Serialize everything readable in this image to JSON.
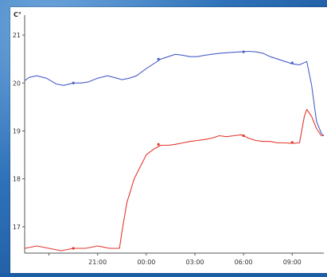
{
  "chart_data": {
    "type": "line",
    "title": "",
    "xlabel": "",
    "ylabel": "",
    "unit_label": "C°",
    "y_ticks": [
      17,
      18,
      19,
      20,
      21
    ],
    "y_tick_labels": [
      "17",
      "18",
      "19",
      "20",
      "21"
    ],
    "ylim": [
      16.45,
      21.35
    ],
    "x_ticks": [
      1,
      3,
      5,
      7,
      9,
      11
    ],
    "x_tick_labels": [
      "21:00",
      "00:00",
      "03:00",
      "06:00",
      "09:00"
    ],
    "x_tick_label_positions": [
      3,
      5,
      7,
      9,
      11
    ],
    "xlim": [
      0,
      12.3
    ],
    "grid": false,
    "legend": "none",
    "series": [
      {
        "color": "#4a5fc8",
        "x": [
          0,
          0.2,
          0.5,
          0.9,
          1.3,
          1.6,
          2.0,
          2.3,
          2.6,
          3.0,
          3.4,
          3.8,
          4.0,
          4.3,
          4.6,
          5.0,
          5.3,
          5.6,
          5.9,
          6.2,
          6.5,
          6.8,
          7.1,
          7.4,
          7.7,
          8.0,
          8.3,
          8.6,
          8.9,
          9.2,
          9.5,
          9.8,
          10.1,
          10.4,
          10.7,
          11.0,
          11.3,
          11.6,
          11.8,
          12.0,
          12.2,
          12.3
        ],
        "y": [
          20.05,
          20.12,
          20.15,
          20.1,
          19.98,
          19.95,
          20.0,
          20.0,
          20.02,
          20.1,
          20.15,
          20.1,
          20.07,
          20.1,
          20.15,
          20.3,
          20.4,
          20.5,
          20.55,
          20.6,
          20.58,
          20.55,
          20.55,
          20.58,
          20.6,
          20.62,
          20.63,
          20.64,
          20.65,
          20.66,
          20.65,
          20.62,
          20.55,
          20.5,
          20.45,
          20.4,
          20.38,
          20.45,
          19.95,
          19.2,
          18.95,
          18.9
        ],
        "markers": [
          [
            2.0,
            20.0
          ],
          [
            5.5,
            20.5
          ],
          [
            9.0,
            20.65
          ],
          [
            11.0,
            20.42
          ]
        ]
      },
      {
        "color": "#e2382c",
        "x": [
          0,
          0.5,
          1.0,
          1.5,
          2.0,
          2.5,
          3.0,
          3.5,
          3.9,
          4.0,
          4.2,
          4.5,
          4.8,
          5.0,
          5.3,
          5.6,
          5.9,
          6.2,
          6.5,
          6.8,
          7.1,
          7.4,
          7.7,
          8.0,
          8.3,
          8.6,
          8.9,
          9.2,
          9.5,
          9.8,
          10.1,
          10.4,
          10.7,
          11.0,
          11.3,
          11.5,
          11.6,
          11.8,
          12.0,
          12.2,
          12.3
        ],
        "y": [
          16.55,
          16.6,
          16.55,
          16.5,
          16.55,
          16.55,
          16.6,
          16.55,
          16.55,
          16.9,
          17.5,
          18.0,
          18.3,
          18.5,
          18.62,
          18.7,
          18.7,
          18.72,
          18.75,
          18.78,
          18.8,
          18.82,
          18.85,
          18.9,
          18.88,
          18.9,
          18.92,
          18.85,
          18.8,
          18.78,
          18.78,
          18.75,
          18.75,
          18.74,
          18.75,
          19.3,
          19.45,
          19.3,
          19.05,
          18.9,
          18.9
        ],
        "markers": [
          [
            2.0,
            16.55
          ],
          [
            5.5,
            18.72
          ],
          [
            9.0,
            18.9
          ],
          [
            11.0,
            18.76
          ]
        ]
      }
    ]
  }
}
